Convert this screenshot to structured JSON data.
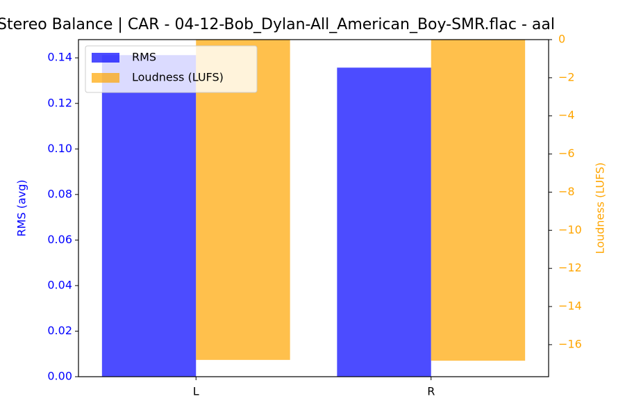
{
  "chart_data": {
    "type": "bar",
    "title": "Stereo Balance | CAR - 04-12-Bob_Dylan-All_American_Boy-SMR.flac - aal",
    "y_label": "RMS (avg)",
    "y2_label": "Loudness (LUFS)",
    "categories": [
      "L",
      "R"
    ],
    "series": [
      {
        "name": "RMS",
        "color": "#0000ff",
        "values": [
          0.1412,
          0.1357
        ]
      },
      {
        "name": "Loudness (LUFS)",
        "color": "#ffa500",
        "axis": "y2",
        "values": [
          -16.8,
          -16.84
        ]
      }
    ],
    "ylim": [
      0,
      0.148
    ],
    "yticks": [
      {
        "value": 0,
        "label": "0.00"
      },
      {
        "value": 0.02,
        "label": "0.02"
      },
      {
        "value": 0.04,
        "label": "0.04"
      },
      {
        "value": 0.06,
        "label": "0.06"
      },
      {
        "value": 0.08,
        "label": "0.08"
      },
      {
        "value": 0.1,
        "label": "0.10"
      },
      {
        "value": 0.12,
        "label": "0.12"
      },
      {
        "value": 0.14,
        "label": "0.14"
      }
    ],
    "y2lim": [
      -17.68,
      0
    ],
    "y2ticks": [
      0,
      {
        "value": -2,
        "label": "−2"
      },
      {
        "value": -4,
        "label": "−4"
      },
      {
        "value": -6,
        "label": "−6"
      },
      {
        "value": -8,
        "label": "−8"
      },
      {
        "value": -10,
        "label": "−10"
      },
      {
        "value": -12,
        "label": "−12"
      },
      {
        "value": -14,
        "label": "−14"
      },
      {
        "value": -16,
        "label": "−16"
      }
    ],
    "legend": "upper left"
  }
}
